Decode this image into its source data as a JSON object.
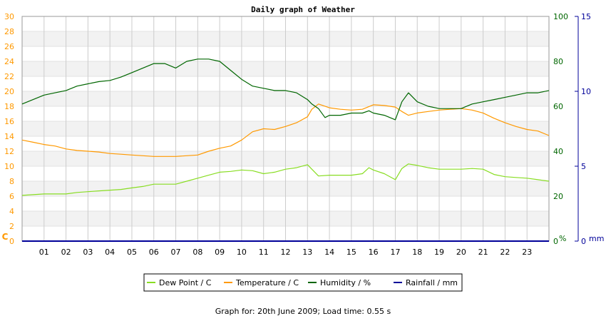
{
  "chart_data": {
    "type": "line",
    "title": "Daily graph of Weather",
    "x_tick_labels": [
      "01",
      "02",
      "03",
      "04",
      "05",
      "06",
      "07",
      "08",
      "09",
      "10",
      "11",
      "12",
      "13",
      "14",
      "15",
      "16",
      "17",
      "18",
      "19",
      "20",
      "21",
      "22",
      "23"
    ],
    "xlim": [
      0,
      24
    ],
    "axes": {
      "left": {
        "unit": "C",
        "range": [
          0,
          30
        ],
        "ticks": [
          0,
          2,
          4,
          6,
          8,
          10,
          12,
          14,
          16,
          18,
          20,
          22,
          24,
          26,
          28,
          30
        ],
        "color": "#ff9900"
      },
      "right1": {
        "unit": "%",
        "range": [
          0,
          100
        ],
        "ticks": [
          0,
          20,
          40,
          60,
          80,
          100
        ],
        "color": "#006600"
      },
      "right2": {
        "unit": "mm",
        "range": [
          0,
          15
        ],
        "ticks": [
          0,
          5,
          10,
          15
        ],
        "color": "#000099"
      }
    },
    "series": [
      {
        "name": "Dew Point / C",
        "axis": "left",
        "color": "#88dd22",
        "x": [
          0,
          0.5,
          1,
          1.5,
          2,
          2.5,
          3,
          3.5,
          4,
          4.5,
          5,
          5.5,
          6,
          6.5,
          7,
          7.5,
          8,
          8.5,
          9,
          9.5,
          10,
          10.5,
          11,
          11.5,
          12,
          12.5,
          13,
          13.2,
          13.5,
          14,
          14.5,
          15,
          15.5,
          15.8,
          16,
          16.5,
          17,
          17.3,
          17.6,
          18,
          18.5,
          19,
          19.5,
          20,
          20.5,
          21,
          21.5,
          22,
          22.5,
          23,
          23.5,
          24
        ],
        "y": [
          6.1,
          6.2,
          6.3,
          6.3,
          6.3,
          6.5,
          6.6,
          6.7,
          6.8,
          6.9,
          7.1,
          7.3,
          7.6,
          7.6,
          7.6,
          8.0,
          8.4,
          8.8,
          9.2,
          9.3,
          9.5,
          9.4,
          9.0,
          9.2,
          9.6,
          9.8,
          10.2,
          9.6,
          8.7,
          8.8,
          8.8,
          8.8,
          9.0,
          9.8,
          9.5,
          9.0,
          8.2,
          9.7,
          10.3,
          10.1,
          9.8,
          9.6,
          9.6,
          9.6,
          9.7,
          9.6,
          8.9,
          8.6,
          8.5,
          8.4,
          8.2,
          8.0
        ]
      },
      {
        "name": "Temperature / C",
        "axis": "left",
        "color": "#ff9900",
        "x": [
          0,
          0.5,
          1,
          1.5,
          2,
          2.5,
          3,
          3.5,
          4,
          4.5,
          5,
          5.5,
          6,
          6.5,
          7,
          7.5,
          8,
          8.5,
          9,
          9.5,
          10,
          10.5,
          11,
          11.5,
          12,
          12.5,
          13,
          13.2,
          13.5,
          14,
          14.5,
          15,
          15.5,
          16,
          16.5,
          17,
          17.3,
          17.6,
          18,
          18.5,
          19,
          19.5,
          20,
          20.5,
          21,
          21.5,
          22,
          22.5,
          23,
          23.5,
          24
        ],
        "y": [
          13.5,
          13.2,
          12.9,
          12.7,
          12.3,
          12.1,
          12.0,
          11.9,
          11.7,
          11.6,
          11.5,
          11.4,
          11.3,
          11.3,
          11.3,
          11.4,
          11.5,
          12.0,
          12.4,
          12.7,
          13.5,
          14.6,
          15.0,
          14.9,
          15.3,
          15.8,
          16.6,
          17.6,
          18.3,
          17.8,
          17.6,
          17.5,
          17.6,
          18.2,
          18.1,
          17.9,
          17.3,
          16.8,
          17.1,
          17.3,
          17.5,
          17.6,
          17.7,
          17.5,
          17.1,
          16.4,
          15.8,
          15.3,
          14.9,
          14.7,
          14.1
        ]
      },
      {
        "name": "Humidity / %",
        "axis": "right1",
        "color": "#006600",
        "x": [
          0,
          0.5,
          1,
          1.5,
          2,
          2.5,
          3,
          3.5,
          4,
          4.5,
          5,
          5.5,
          6,
          6.5,
          7,
          7.5,
          8,
          8.5,
          9,
          9.5,
          10,
          10.5,
          11,
          11.5,
          12,
          12.5,
          13,
          13.2,
          13.5,
          13.8,
          14,
          14.5,
          15,
          15.5,
          15.8,
          16,
          16.5,
          17,
          17.3,
          17.6,
          18,
          18.5,
          19,
          19.5,
          20,
          20.5,
          21,
          21.5,
          22,
          22.5,
          23,
          23.5,
          24
        ],
        "y": [
          61,
          63,
          65,
          66,
          67,
          69,
          70,
          71,
          71.5,
          73,
          75,
          77,
          79,
          79,
          77,
          80,
          81,
          81,
          80,
          76,
          72,
          69,
          68,
          67,
          67,
          66,
          63,
          61,
          59,
          55,
          56,
          56,
          57,
          57,
          58,
          57,
          56,
          54,
          62,
          66,
          62,
          60,
          59,
          59,
          59,
          61,
          62,
          63,
          64,
          65,
          66,
          66,
          67
        ]
      },
      {
        "name": "Rainfall / mm",
        "axis": "right2",
        "color": "#000099",
        "x": [
          0,
          24
        ],
        "y": [
          0,
          0
        ]
      }
    ],
    "grid": true,
    "legend_position": "bottom"
  },
  "legend": [
    {
      "label": "Dew Point / C",
      "color": "#88dd22"
    },
    {
      "label": "Temperature / C",
      "color": "#ff9900"
    },
    {
      "label": "Humidity / %",
      "color": "#006600"
    },
    {
      "label": "Rainfall / mm",
      "color": "#000099"
    }
  ],
  "footer": "Graph for: 20th June 2009; Load time: 0.55 s"
}
